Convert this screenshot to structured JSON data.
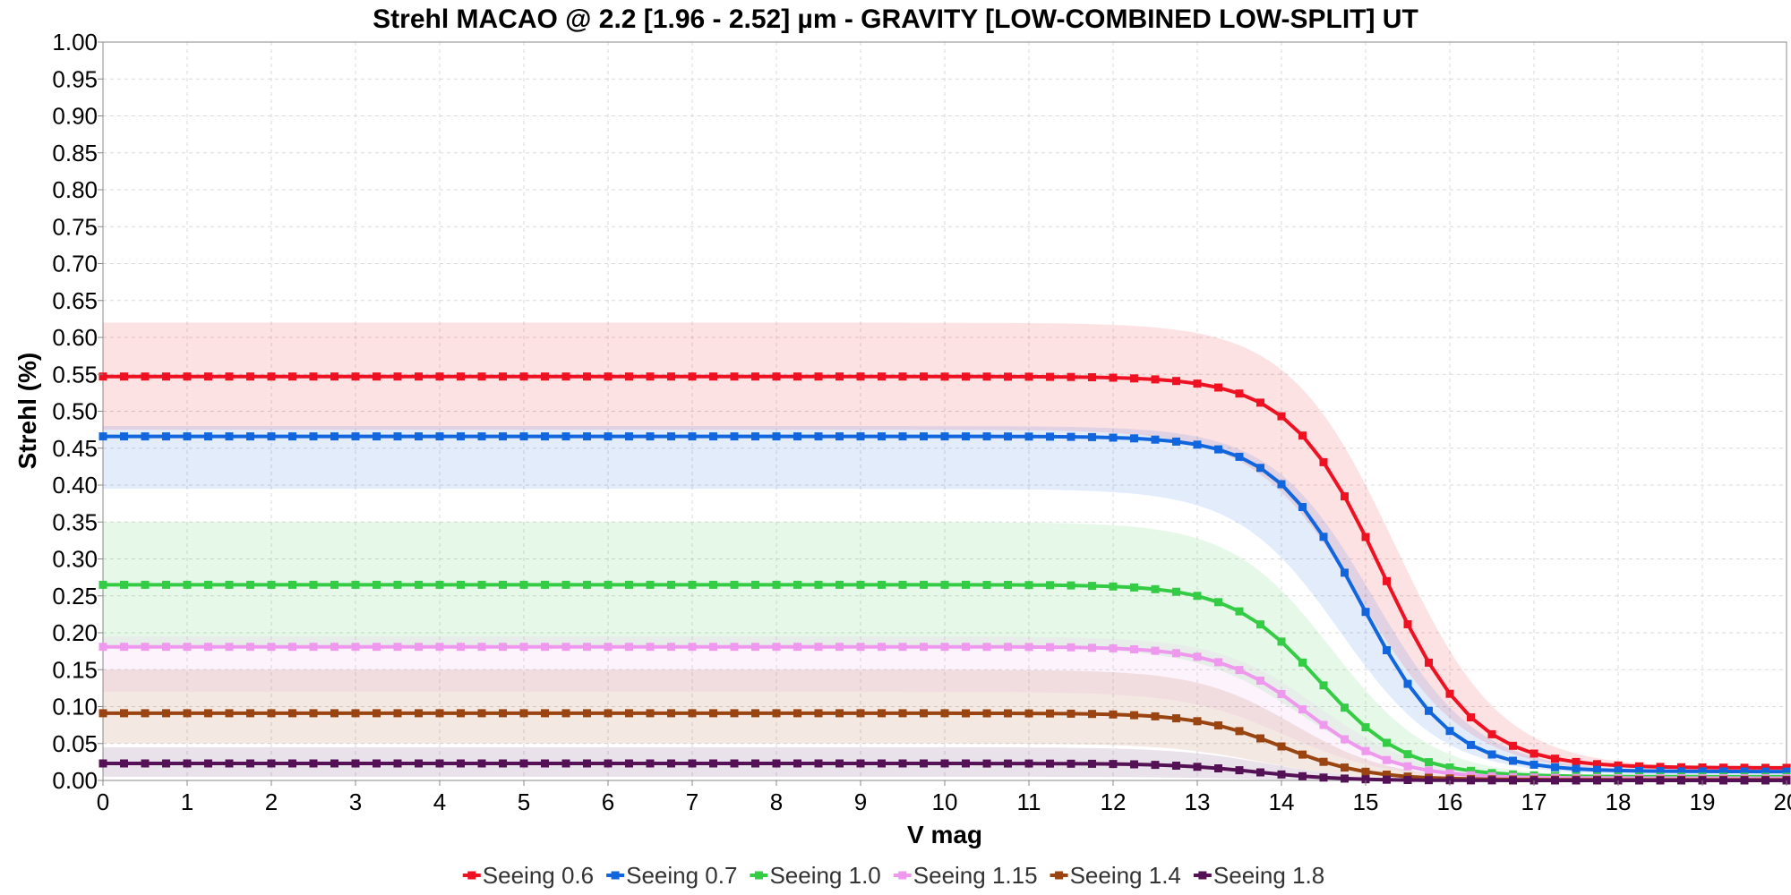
{
  "chart_data": {
    "type": "line",
    "title": "Strehl MACAO @ 2.2 [1.96 - 2.52] µm - GRAVITY [LOW-COMBINED LOW-SPLIT] UT",
    "xlabel": "V mag",
    "ylabel": "Strehl (%)",
    "xlim": [
      0,
      20
    ],
    "ylim": [
      0,
      1
    ],
    "xticks": [
      "0",
      "1",
      "2",
      "3",
      "4",
      "5",
      "6",
      "7",
      "8",
      "9",
      "10",
      "11",
      "12",
      "13",
      "14",
      "15",
      "16",
      "17",
      "18",
      "19",
      "20"
    ],
    "yticks": [
      "0.00",
      "0.05",
      "0.10",
      "0.15",
      "0.20",
      "0.25",
      "0.30",
      "0.35",
      "0.40",
      "0.45",
      "0.50",
      "0.55",
      "0.60",
      "0.65",
      "0.70",
      "0.75",
      "0.80",
      "0.85",
      "0.90",
      "0.95",
      "1.00"
    ],
    "grid": true,
    "legend_position": "bottom",
    "x": [
      0,
      0.25,
      0.5,
      0.75,
      1,
      1.25,
      1.5,
      1.75,
      2,
      2.25,
      2.5,
      2.75,
      3,
      3.25,
      3.5,
      3.75,
      4,
      4.25,
      4.5,
      4.75,
      5,
      5.25,
      5.5,
      5.75,
      6,
      6.25,
      6.5,
      6.75,
      7,
      7.25,
      7.5,
      7.75,
      8,
      8.25,
      8.5,
      8.75,
      9,
      9.25,
      9.5,
      9.75,
      10,
      10.25,
      10.5,
      10.75,
      11,
      11.25,
      11.5,
      11.75,
      12,
      12.25,
      12.5,
      12.75,
      13,
      13.25,
      13.5,
      13.75,
      14,
      14.25,
      14.5,
      14.75,
      15,
      15.25,
      15.5,
      15.75,
      16,
      16.25,
      16.5,
      16.75,
      17,
      17.25,
      17.5,
      17.75,
      18,
      18.25,
      18.5,
      18.75,
      19,
      19.25,
      19.5,
      19.75,
      20
    ],
    "series": [
      {
        "name": "Seeing 0.6",
        "color": "#ee1122",
        "plateau": 0.547,
        "band_low": 0.475,
        "band_high": 0.62,
        "m0": 15.2,
        "w": 0.55,
        "floor": 0.017
      },
      {
        "name": "Seeing 0.7",
        "color": "#1166dd",
        "plateau": 0.466,
        "band_low": 0.395,
        "band_high": 0.48,
        "m0": 14.95,
        "w": 0.53,
        "floor": 0.012
      },
      {
        "name": "Seeing 1.0",
        "color": "#33cc44",
        "plateau": 0.265,
        "band_low": 0.18,
        "band_high": 0.35,
        "m0": 14.45,
        "w": 0.52,
        "floor": 0.005
      },
      {
        "name": "Seeing 1.15",
        "color": "#ee99ee",
        "plateau": 0.181,
        "band_low": 0.12,
        "band_high": 0.195,
        "m0": 14.3,
        "w": 0.52,
        "floor": 0.003
      },
      {
        "name": "Seeing 1.4",
        "color": "#994411",
        "plateau": 0.091,
        "band_low": 0.05,
        "band_high": 0.15,
        "m0": 14.0,
        "w": 0.5,
        "floor": 0.001
      },
      {
        "name": "Seeing 1.8",
        "color": "#551155",
        "plateau": 0.023,
        "band_low": 0.005,
        "band_high": 0.045,
        "m0": 13.7,
        "w": 0.5,
        "floor": 0.0
      }
    ]
  }
}
